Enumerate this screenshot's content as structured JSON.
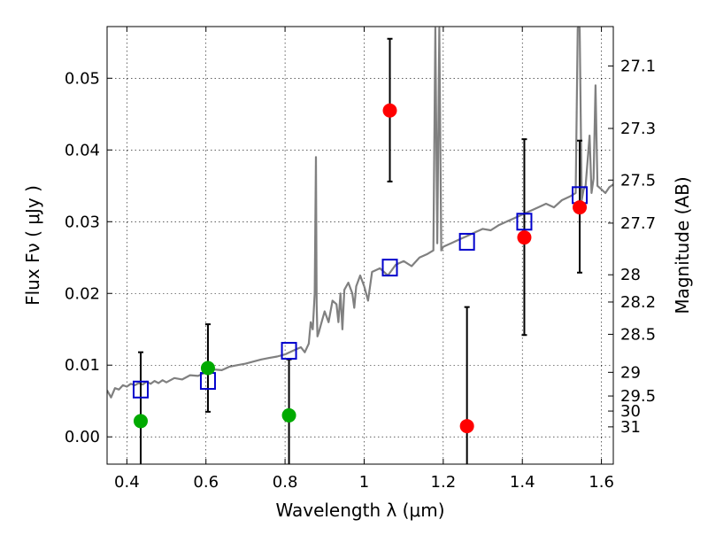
{
  "chart_data": {
    "type": "scatter",
    "title": "",
    "xlabel": "Wavelength  λ (μm)",
    "ylabel": "Flux  Fν  ( μJy )",
    "ylabel_right": "Magnitude (AB)",
    "xlim": [
      0.35,
      1.63
    ],
    "ylim": [
      -0.0038,
      0.0572
    ],
    "grid": true,
    "x_ticks": [
      0.4,
      0.6,
      0.8,
      1.0,
      1.2,
      1.4,
      1.6
    ],
    "x_tick_labels": [
      "0.4",
      "0.6",
      "0.8",
      "1",
      "1.2",
      "1.4",
      "1.6"
    ],
    "y_ticks": [
      0.0,
      0.01,
      0.02,
      0.03,
      0.04,
      0.05
    ],
    "y_tick_labels": [
      "0.00",
      "0.01",
      "0.02",
      "0.03",
      "0.04",
      "0.05"
    ],
    "right_ticks": [
      {
        "label": "27.1",
        "flux": 0.0517
      },
      {
        "label": "27.3",
        "flux": 0.043
      },
      {
        "label": "27.5",
        "flux": 0.0358
      },
      {
        "label": "27.7",
        "flux": 0.0298
      },
      {
        "label": "28",
        "flux": 0.0226
      },
      {
        "label": "28.2",
        "flux": 0.0188
      },
      {
        "label": "28.5",
        "flux": 0.0143
      },
      {
        "label": "29",
        "flux": 0.009
      },
      {
        "label": "29.5",
        "flux": 0.0057
      },
      {
        "label": "30",
        "flux": 0.0036
      },
      {
        "label": "31",
        "flux": 0.0014
      }
    ],
    "series": [
      {
        "name": "SED model",
        "kind": "line",
        "color": "#808080",
        "x": [
          0.35,
          0.36,
          0.37,
          0.38,
          0.39,
          0.4,
          0.41,
          0.42,
          0.43,
          0.44,
          0.45,
          0.46,
          0.47,
          0.48,
          0.49,
          0.5,
          0.52,
          0.54,
          0.56,
          0.58,
          0.6,
          0.62,
          0.64,
          0.66,
          0.68,
          0.7,
          0.72,
          0.74,
          0.76,
          0.78,
          0.8,
          0.82,
          0.84,
          0.85,
          0.86,
          0.865,
          0.87,
          0.875,
          0.878,
          0.88,
          0.882,
          0.885,
          0.89,
          0.9,
          0.91,
          0.92,
          0.93,
          0.935,
          0.94,
          0.945,
          0.95,
          0.96,
          0.97,
          0.975,
          0.98,
          0.99,
          1.0,
          1.01,
          1.02,
          1.04,
          1.06,
          1.08,
          1.1,
          1.12,
          1.14,
          1.16,
          1.175,
          1.18,
          1.185,
          1.19,
          1.195,
          1.2,
          1.22,
          1.24,
          1.26,
          1.28,
          1.3,
          1.32,
          1.34,
          1.36,
          1.38,
          1.4,
          1.42,
          1.44,
          1.46,
          1.48,
          1.5,
          1.52,
          1.535,
          1.54,
          1.545,
          1.55,
          1.555,
          1.56,
          1.57,
          1.575,
          1.58,
          1.585,
          1.59,
          1.6,
          1.61,
          1.62,
          1.63
        ],
        "y": [
          0.0065,
          0.0055,
          0.0068,
          0.0066,
          0.0072,
          0.007,
          0.0074,
          0.0072,
          0.0075,
          0.0073,
          0.0077,
          0.0074,
          0.0078,
          0.0075,
          0.0079,
          0.0076,
          0.0082,
          0.008,
          0.0086,
          0.0085,
          0.009,
          0.0094,
          0.0093,
          0.0098,
          0.01,
          0.0102,
          0.0105,
          0.0108,
          0.011,
          0.0112,
          0.0115,
          0.012,
          0.0125,
          0.0118,
          0.013,
          0.016,
          0.015,
          0.02,
          0.039,
          0.0185,
          0.014,
          0.0145,
          0.0155,
          0.0175,
          0.016,
          0.019,
          0.0185,
          0.016,
          0.02,
          0.015,
          0.0205,
          0.0215,
          0.02,
          0.018,
          0.021,
          0.0225,
          0.021,
          0.019,
          0.023,
          0.0235,
          0.0225,
          0.024,
          0.0245,
          0.0238,
          0.025,
          0.0255,
          0.026,
          0.057,
          0.027,
          0.057,
          0.026,
          0.0265,
          0.027,
          0.0275,
          0.028,
          0.0285,
          0.029,
          0.0288,
          0.0295,
          0.03,
          0.0305,
          0.031,
          0.0315,
          0.032,
          0.0325,
          0.032,
          0.033,
          0.0335,
          0.034,
          0.057,
          0.057,
          0.033,
          0.0345,
          0.035,
          0.042,
          0.034,
          0.036,
          0.049,
          0.035,
          0.0345,
          0.034,
          0.0348,
          0.0352
        ]
      },
      {
        "name": "model photometry",
        "kind": "open-square",
        "color": "#0000cc",
        "x": [
          0.435,
          0.605,
          0.81,
          1.065,
          1.26,
          1.405,
          1.545
        ],
        "y": [
          0.0066,
          0.0078,
          0.012,
          0.0236,
          0.0272,
          0.03,
          0.0337
        ]
      },
      {
        "name": "observed (green)",
        "kind": "filled-circle",
        "color": "#00aa00",
        "x": [
          0.435,
          0.605,
          0.81
        ],
        "y": [
          0.0022,
          0.0096,
          0.003
        ],
        "yerr_low": [
          -0.0039,
          0.0035,
          -0.0039
        ],
        "yerr_high": [
          0.0118,
          0.0157,
          0.0108
        ]
      },
      {
        "name": "observed (red)",
        "kind": "filled-circle",
        "color": "#ff0000",
        "x": [
          1.065,
          1.26,
          1.405,
          1.545
        ],
        "y": [
          0.0455,
          0.0015,
          0.0278,
          0.032
        ],
        "yerr_low": [
          0.0356,
          -0.0039,
          0.0142,
          0.0229
        ],
        "yerr_high": [
          0.0555,
          0.0181,
          0.0415,
          0.0413
        ]
      }
    ]
  }
}
